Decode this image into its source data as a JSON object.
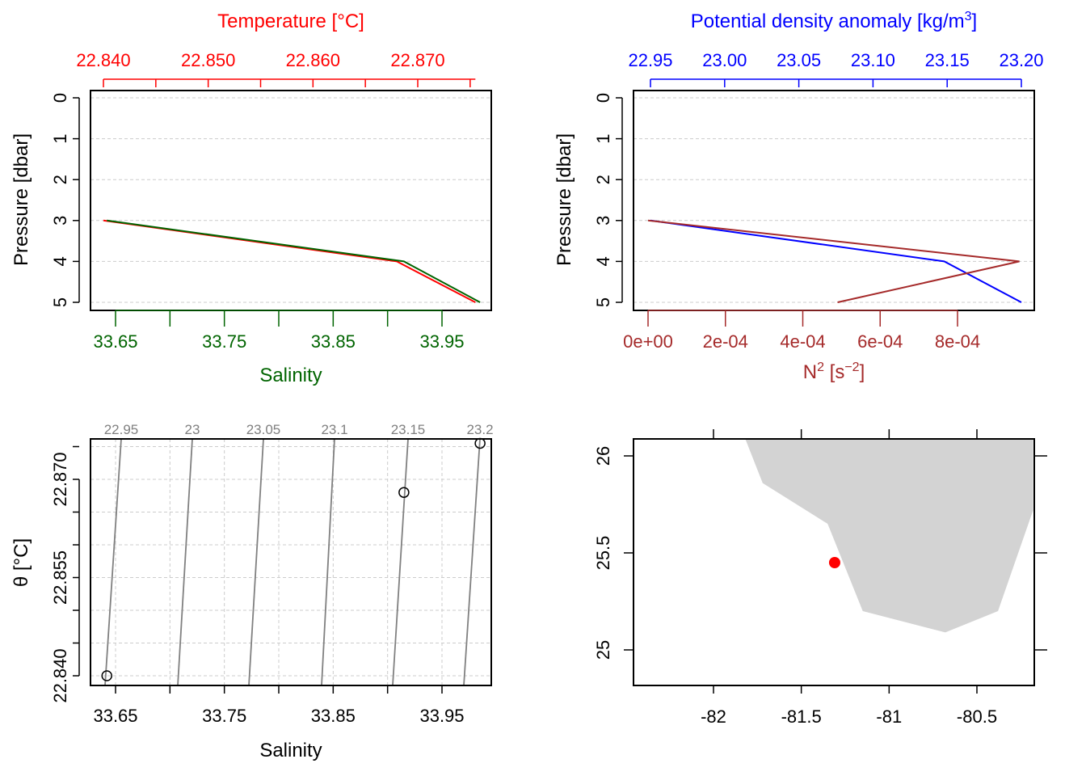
{
  "chart_data": [
    {
      "type": "line",
      "panel": "temperature-salinity-profile",
      "top_axis_title": "Temperature [°C]",
      "bottom_axis_title": "Salinity",
      "left_axis_title": "Pressure [dbar]",
      "top_axis_color": "#ff0000",
      "bottom_axis_color": "#006400",
      "top_ticks": [
        "22.840",
        "22.850",
        "22.860",
        "22.870"
      ],
      "bottom_ticks": [
        "33.65",
        "33.75",
        "33.85",
        "33.95"
      ],
      "left_ticks": [
        "0",
        "1",
        "2",
        "3",
        "4",
        "5"
      ],
      "grid": true,
      "series": [
        {
          "name": "Temperature [°C]",
          "color": "#ff0000",
          "x": [
            22.84,
            22.868,
            22.8755
          ],
          "y": [
            3,
            4,
            5
          ]
        },
        {
          "name": "Salinity",
          "color": "#006400",
          "x": [
            33.642,
            33.915,
            33.985
          ],
          "y": [
            3,
            4,
            5
          ]
        }
      ]
    },
    {
      "type": "line",
      "panel": "density-n2-profile",
      "top_axis_title": "Potential density anomaly [kg/m³]",
      "bottom_axis_title": "N² [s⁻²]",
      "left_axis_title": "Pressure [dbar]",
      "top_axis_color": "#0000ff",
      "bottom_axis_color": "#a52a2a",
      "top_ticks": [
        "22.95",
        "23.00",
        "23.05",
        "23.10",
        "23.15",
        "23.20"
      ],
      "bottom_ticks": [
        "0e+00",
        "2e-04",
        "4e-04",
        "6e-04",
        "8e-04"
      ],
      "left_ticks": [
        "0",
        "1",
        "2",
        "3",
        "4",
        "5"
      ],
      "grid": true,
      "series": [
        {
          "name": "Potential density anomaly",
          "color": "#0000ff",
          "x": [
            22.95,
            23.148,
            23.2
          ],
          "y": [
            3,
            4,
            5
          ]
        },
        {
          "name": "N²",
          "color": "#a52a2a",
          "x": [
            0.0,
            0.00096,
            0.00049
          ],
          "y": [
            3,
            4,
            5
          ]
        }
      ]
    },
    {
      "type": "scatter",
      "panel": "ts-diagram",
      "xlabel": "Salinity",
      "ylabel": "θ [°C]",
      "x_ticks": [
        "33.65",
        "33.75",
        "33.85",
        "33.95"
      ],
      "y_ticks": [
        "22.840",
        "22.855",
        "22.870"
      ],
      "isopycnal_labels": [
        "22.95",
        "23",
        "23.05",
        "23.1",
        "23.15",
        "23.2"
      ],
      "grid": true,
      "points": [
        {
          "x": 33.642,
          "y": 22.84
        },
        {
          "x": 33.915,
          "y": 22.868
        },
        {
          "x": 33.985,
          "y": 22.8755
        }
      ]
    },
    {
      "type": "map",
      "panel": "station-map",
      "x_ticks": [
        "-82",
        "-81.5",
        "-81",
        "-80.5"
      ],
      "y_ticks": [
        "25",
        "25.5",
        "26"
      ],
      "land_color": "#d3d3d3",
      "station": {
        "lon": -81.31,
        "lat": 25.45,
        "color": "#ff0000"
      }
    }
  ]
}
